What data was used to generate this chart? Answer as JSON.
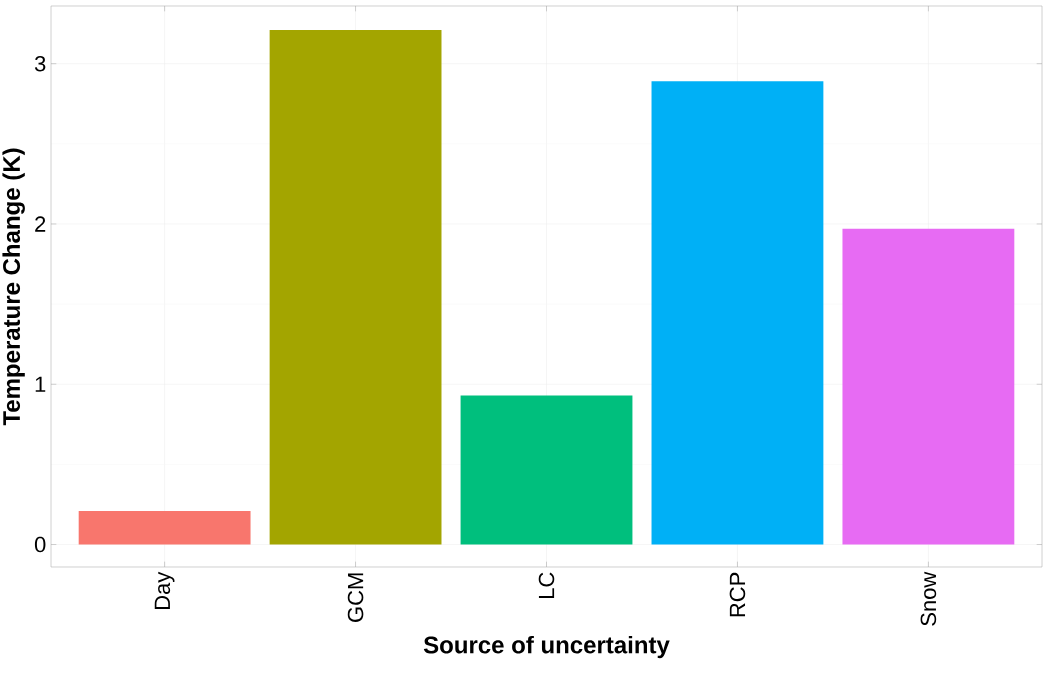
{
  "chart_data": {
    "type": "bar",
    "xlabel": "Source of uncertainty",
    "ylabel": "Temperature Change (K)",
    "categories": [
      "Day",
      "GCM",
      "LC",
      "RCP",
      "Snow"
    ],
    "values": [
      0.21,
      3.21,
      0.93,
      2.89,
      1.97
    ],
    "colors": [
      "#f8766d",
      "#a3a500",
      "#00bf7d",
      "#00b0f6",
      "#e76bf3"
    ],
    "ylim": [
      -0.14,
      3.36
    ],
    "yticks": [
      0,
      1,
      2,
      3
    ],
    "grid": true
  }
}
